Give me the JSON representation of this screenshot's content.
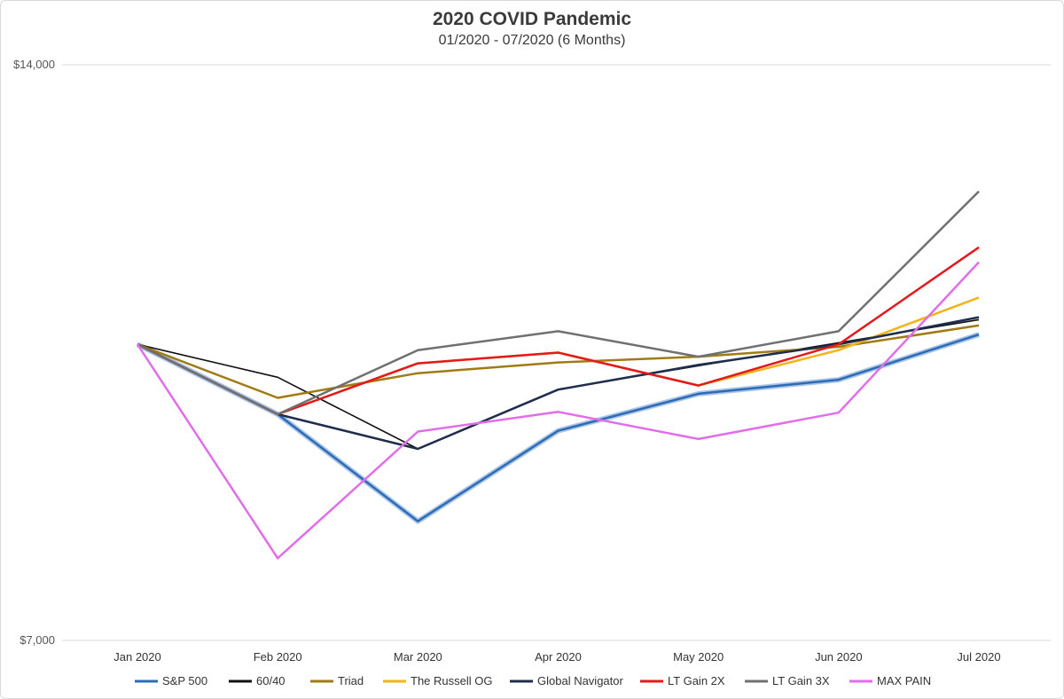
{
  "chart_data": {
    "type": "line",
    "title": "2020 COVID Pandemic",
    "subtitle": "01/2020 - 07/2020 (6 Months)",
    "xlabel": "",
    "ylabel": "",
    "categories": [
      "Jan 2020",
      "Feb 2020",
      "Mar 2020",
      "Apr 2020",
      "May 2020",
      "Jun 2020",
      "Jul 2020"
    ],
    "ylim": [
      7000,
      14000
    ],
    "yticks": [
      "$14,000",
      "$7,000"
    ],
    "grid": "horizontal",
    "legend_position": "bottom",
    "series": [
      {
        "name": "S&P 500",
        "color": "#2e6bb5",
        "values": [
          10600,
          9750,
          8450,
          9550,
          10000,
          10170,
          10720
        ]
      },
      {
        "name": "60/40",
        "color": "#111111",
        "values": [
          10600,
          10200,
          9330,
          10050,
          10340,
          10620,
          10900
        ]
      },
      {
        "name": "Triad",
        "color": "#a07b13",
        "values": [
          10600,
          9950,
          10250,
          10380,
          10450,
          10570,
          10830
        ]
      },
      {
        "name": "The Russell OG",
        "color": "#f2b418",
        "values": [
          10600,
          9750,
          10370,
          10500,
          10100,
          10530,
          11170
        ]
      },
      {
        "name": "Global Navigator",
        "color": "#1f2d4d",
        "values": [
          10600,
          9750,
          9330,
          10050,
          10350,
          10600,
          10930
        ]
      },
      {
        "name": "LT Gain 2X",
        "color": "#e3191d",
        "values": [
          10600,
          9750,
          10370,
          10500,
          10100,
          10600,
          11780
        ]
      },
      {
        "name": "LT Gain 3X",
        "color": "#707070",
        "values": [
          10600,
          9750,
          10530,
          10760,
          10450,
          10760,
          12460
        ]
      },
      {
        "name": "MAX PAIN",
        "color": "#e06ee8",
        "values": [
          10600,
          8000,
          9540,
          9780,
          9450,
          9770,
          11600
        ]
      }
    ]
  }
}
